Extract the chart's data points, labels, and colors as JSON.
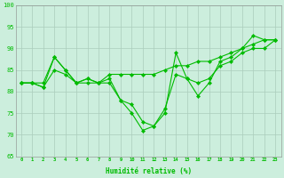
{
  "xlabel": "Humidité relative (%)",
  "background_color": "#cceedd",
  "grid_color": "#aaccbb",
  "line_color": "#00bb00",
  "ylim": [
    65,
    100
  ],
  "xlim": [
    -0.5,
    23.5
  ],
  "yticks": [
    65,
    70,
    75,
    80,
    85,
    90,
    95,
    100
  ],
  "xticks": [
    0,
    1,
    2,
    3,
    4,
    5,
    6,
    7,
    8,
    9,
    10,
    11,
    12,
    13,
    14,
    15,
    16,
    17,
    18,
    19,
    20,
    21,
    22,
    23
  ],
  "series1": [
    82,
    82,
    82,
    88,
    85,
    82,
    83,
    82,
    84,
    84,
    84,
    84,
    84,
    85,
    86,
    86,
    87,
    87,
    88,
    89,
    90,
    91,
    92,
    92
  ],
  "series2": [
    82,
    82,
    81,
    85,
    84,
    82,
    82,
    82,
    82,
    78,
    75,
    71,
    72,
    75,
    89,
    83,
    79,
    82,
    87,
    88,
    90,
    93,
    92,
    92
  ],
  "series3": [
    82,
    82,
    81,
    88,
    85,
    82,
    83,
    82,
    83,
    78,
    77,
    73,
    72,
    76,
    84,
    83,
    82,
    83,
    86,
    87,
    89,
    90,
    90,
    92
  ]
}
